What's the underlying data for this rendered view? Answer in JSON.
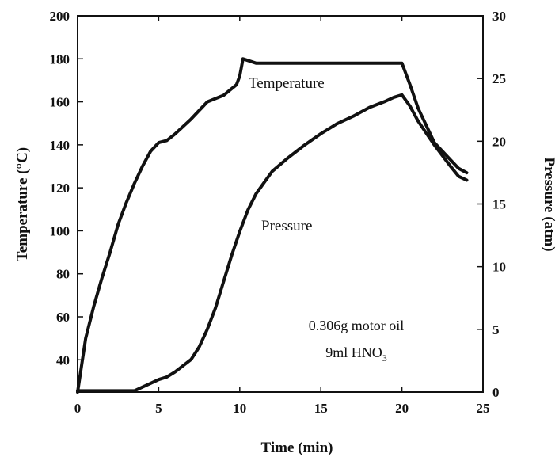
{
  "chart_data": {
    "type": "line",
    "title": "",
    "xlabel": "Time (min)",
    "ylabel_left": "Temperature (°C)",
    "ylabel_right": "Pressure (atm)",
    "xlim": [
      0,
      25
    ],
    "ylim_left": [
      25,
      200
    ],
    "ylim_right": [
      0,
      30
    ],
    "x_ticks": [
      "0",
      "5",
      "10",
      "15",
      "20",
      "25"
    ],
    "y_left_ticks": [
      "40",
      "60",
      "80",
      "100",
      "120",
      "140",
      "160",
      "180",
      "200"
    ],
    "y_right_ticks": [
      "0",
      "5",
      "10",
      "15",
      "20",
      "25",
      "30"
    ],
    "grid": false,
    "series": [
      {
        "name": "Temperature",
        "axis": "left",
        "x": [
          0,
          0.5,
          1,
          1.5,
          2,
          2.5,
          3,
          3.5,
          4,
          4.5,
          5,
          5.5,
          6,
          7,
          8,
          9,
          9.8,
          10,
          10.2,
          11,
          12,
          13,
          14,
          15,
          16,
          17,
          18,
          19,
          19.8,
          20,
          20.5,
          21,
          22,
          23,
          23.5,
          24
        ],
        "y": [
          25,
          50,
          65,
          78,
          90,
          103,
          113,
          122,
          130,
          137,
          141,
          142,
          145,
          152,
          160,
          163,
          168,
          172,
          180,
          178,
          178,
          178,
          178,
          178,
          178,
          178,
          178,
          178,
          178,
          178,
          168,
          157,
          141,
          133,
          129,
          127
        ]
      },
      {
        "name": "Pressure",
        "axis": "right",
        "x": [
          0,
          1,
          2,
          3,
          3.5,
          4,
          4.5,
          5,
          5.5,
          6,
          7,
          7.5,
          8,
          8.5,
          9,
          9.5,
          10,
          10.5,
          11,
          11.5,
          12,
          13,
          14,
          15,
          16,
          17,
          18,
          19,
          19.5,
          20,
          20.5,
          21,
          22,
          23,
          23.5,
          24
        ],
        "y": [
          0.1,
          0.1,
          0.1,
          0.1,
          0.1,
          0.4,
          0.7,
          1.0,
          1.2,
          1.6,
          2.6,
          3.6,
          5.0,
          6.7,
          8.8,
          10.9,
          12.8,
          14.5,
          15.8,
          16.7,
          17.6,
          18.7,
          19.7,
          20.6,
          21.4,
          22.0,
          22.7,
          23.2,
          23.5,
          23.7,
          22.8,
          21.6,
          19.7,
          18.0,
          17.2,
          16.9
        ]
      }
    ],
    "annotations": {
      "temperature_label": "Temperature",
      "pressure_label": "Pressure",
      "note_line1": "0.306g motor oil",
      "note_line2": "9ml HNO",
      "note_line2_sub": "3"
    }
  }
}
